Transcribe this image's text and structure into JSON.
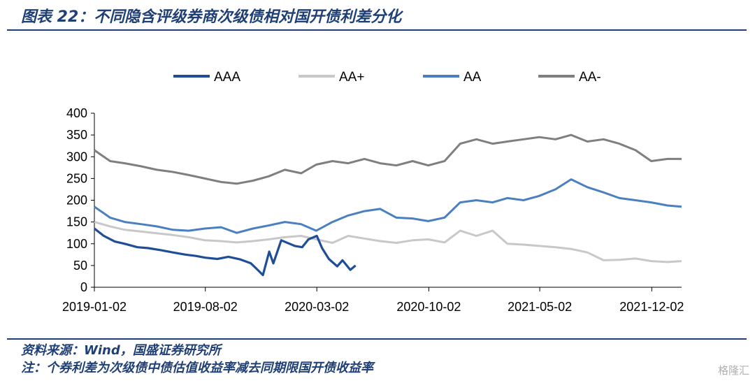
{
  "header": {
    "title": "图表 22：不同隐含评级券商次级债相对国开债利差分化"
  },
  "footer": {
    "source": "资料来源：Wind，国盛证券研究所",
    "note": "注：个券利差为次级债中债估值收益率减去同期限国开债收益率"
  },
  "watermark": "格隆汇",
  "chart_data": {
    "type": "line",
    "title": "",
    "xlabel": "",
    "ylabel": "",
    "ylim": [
      0,
      400
    ],
    "yticks": [
      0,
      50,
      100,
      150,
      200,
      250,
      300,
      350,
      400
    ],
    "xlim": [
      "2019-01-02",
      "2022-01-28"
    ],
    "xticks": [
      "2019-01-02",
      "2019-08-02",
      "2020-03-02",
      "2020-10-02",
      "2021-05-02",
      "2021-12-02"
    ],
    "grid": false,
    "legend": "top",
    "series": [
      {
        "name": "AAA",
        "color": "#1f4e96",
        "x": [
          "2019-01-02",
          "2019-01-20",
          "2019-02-10",
          "2019-03-01",
          "2019-03-25",
          "2019-04-15",
          "2019-05-10",
          "2019-06-01",
          "2019-06-25",
          "2019-07-15",
          "2019-08-02",
          "2019-08-25",
          "2019-09-15",
          "2019-10-08",
          "2019-10-28",
          "2019-11-10",
          "2019-11-20",
          "2019-12-02",
          "2019-12-10",
          "2019-12-25",
          "2020-01-10",
          "2020-01-20",
          "2020-02-03",
          "2020-02-15",
          "2020-03-02",
          "2020-03-12",
          "2020-03-25",
          "2020-04-10",
          "2020-04-20",
          "2020-05-05",
          "2020-05-15"
        ],
        "values": [
          135,
          118,
          105,
          100,
          92,
          90,
          85,
          80,
          75,
          72,
          68,
          65,
          70,
          64,
          55,
          40,
          28,
          82,
          55,
          108,
          100,
          95,
          92,
          110,
          118,
          90,
          65,
          48,
          62,
          40,
          50
        ]
      },
      {
        "name": "AA+",
        "color": "#c8c8c8",
        "x": [
          "2019-01-02",
          "2019-02-01",
          "2019-03-01",
          "2019-04-01",
          "2019-05-01",
          "2019-06-01",
          "2019-07-01",
          "2019-08-01",
          "2019-09-01",
          "2019-10-01",
          "2019-11-01",
          "2019-12-01",
          "2020-01-01",
          "2020-02-01",
          "2020-03-01",
          "2020-04-01",
          "2020-05-01",
          "2020-06-01",
          "2020-07-01",
          "2020-08-01",
          "2020-09-01",
          "2020-10-01",
          "2020-11-01",
          "2020-12-01",
          "2021-01-01",
          "2021-02-01",
          "2021-03-01",
          "2021-04-01",
          "2021-05-01",
          "2021-06-01",
          "2021-07-01",
          "2021-08-01",
          "2021-09-01",
          "2021-10-01",
          "2021-11-01",
          "2021-12-01",
          "2022-01-01",
          "2022-01-28"
        ],
        "values": [
          150,
          140,
          132,
          128,
          124,
          120,
          115,
          108,
          106,
          103,
          106,
          110,
          115,
          118,
          110,
          102,
          118,
          112,
          106,
          102,
          108,
          110,
          103,
          130,
          118,
          130,
          100,
          98,
          95,
          92,
          88,
          80,
          62,
          63,
          66,
          60,
          58,
          60
        ]
      },
      {
        "name": "AA",
        "color": "#4b80c0",
        "x": [
          "2019-01-02",
          "2019-02-01",
          "2019-03-01",
          "2019-04-01",
          "2019-05-01",
          "2019-06-01",
          "2019-07-01",
          "2019-08-01",
          "2019-09-01",
          "2019-10-01",
          "2019-11-01",
          "2019-12-01",
          "2020-01-01",
          "2020-02-01",
          "2020-03-01",
          "2020-04-01",
          "2020-05-01",
          "2020-06-01",
          "2020-07-01",
          "2020-08-01",
          "2020-09-01",
          "2020-10-01",
          "2020-11-01",
          "2020-12-01",
          "2021-01-01",
          "2021-02-01",
          "2021-03-01",
          "2021-04-01",
          "2021-05-01",
          "2021-06-01",
          "2021-07-01",
          "2021-08-01",
          "2021-09-01",
          "2021-10-01",
          "2021-11-01",
          "2021-12-01",
          "2022-01-01",
          "2022-01-28"
        ],
        "values": [
          185,
          160,
          150,
          145,
          140,
          132,
          130,
          135,
          138,
          125,
          135,
          142,
          150,
          145,
          130,
          150,
          165,
          175,
          180,
          160,
          158,
          152,
          160,
          195,
          200,
          195,
          205,
          200,
          210,
          225,
          248,
          230,
          218,
          205,
          200,
          195,
          188,
          185
        ]
      },
      {
        "name": "AA-",
        "color": "#7f7f7f",
        "x": [
          "2019-01-02",
          "2019-02-01",
          "2019-03-01",
          "2019-04-01",
          "2019-05-01",
          "2019-06-01",
          "2019-07-01",
          "2019-08-01",
          "2019-09-01",
          "2019-10-01",
          "2019-11-01",
          "2019-12-01",
          "2020-01-01",
          "2020-02-01",
          "2020-03-01",
          "2020-04-01",
          "2020-05-01",
          "2020-06-01",
          "2020-07-01",
          "2020-08-01",
          "2020-09-01",
          "2020-10-01",
          "2020-11-01",
          "2020-12-01",
          "2021-01-01",
          "2021-02-01",
          "2021-03-01",
          "2021-04-01",
          "2021-05-01",
          "2021-06-01",
          "2021-07-01",
          "2021-08-01",
          "2021-09-01",
          "2021-10-01",
          "2021-11-01",
          "2021-12-01",
          "2022-01-01",
          "2022-01-28"
        ],
        "values": [
          315,
          290,
          285,
          278,
          270,
          265,
          258,
          250,
          242,
          238,
          245,
          255,
          270,
          262,
          282,
          290,
          285,
          295,
          285,
          280,
          290,
          280,
          290,
          330,
          340,
          330,
          335,
          340,
          345,
          340,
          350,
          335,
          340,
          330,
          315,
          290,
          295,
          295
        ]
      }
    ]
  }
}
